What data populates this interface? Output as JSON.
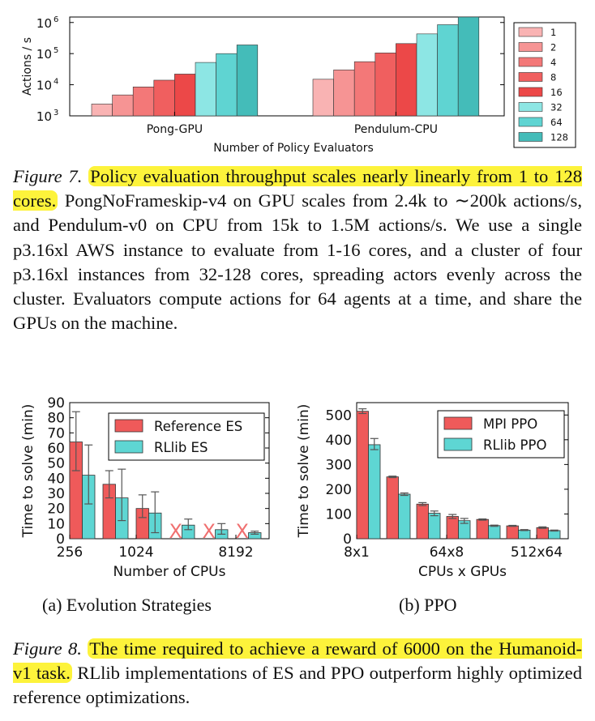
{
  "chart_data": [
    {
      "type": "bar",
      "ylabel": "Actions / s",
      "xlabel": "Number of Policy Evaluators",
      "yscale": "log",
      "ylim": [
        1000,
        1500000
      ],
      "yticks": [
        "10",
        "10",
        "10",
        "10"
      ],
      "ytick_exponents": [
        "3",
        "4",
        "5",
        "6"
      ],
      "categories": [
        "Pong-GPU",
        "Pendulum-CPU"
      ],
      "legend": [
        "1",
        "2",
        "4",
        "8",
        "16",
        "32",
        "64",
        "128"
      ],
      "legend_position": "right",
      "colors": [
        "#f9b3b3",
        "#f69494",
        "#f37878",
        "#f05f5f",
        "#ec4848",
        "#8de6e4",
        "#5fd4d2",
        "#44bcb9"
      ],
      "values": {
        "Pong-GPU": [
          2400,
          4700,
          8500,
          14000,
          22000,
          52000,
          100000,
          190000
        ],
        "Pendulum-CPU": [
          15000,
          30000,
          55000,
          105000,
          210000,
          430000,
          850000,
          1500000
        ]
      }
    },
    {
      "type": "bar",
      "subcaption": "(a) Evolution Strategies",
      "ylabel": "Time to solve (min)",
      "xlabel": "Number of CPUs",
      "ylim": [
        0,
        90
      ],
      "yticks": [
        "0",
        "10",
        "20",
        "30",
        "40",
        "50",
        "60",
        "70",
        "80",
        "90"
      ],
      "xtick_labels": [
        "256",
        "1024",
        "8192"
      ],
      "legend": [
        "Reference ES",
        "RLlib ES"
      ],
      "legend_position": "top-right",
      "colors": [
        "#ef5a5a",
        "#5ed6d3"
      ],
      "x_marker": "X",
      "series": [
        {
          "name": "Reference ES",
          "values": [
            64,
            36,
            20,
            null,
            null,
            null
          ]
        },
        {
          "name": "RLlib ES",
          "values": [
            42,
            27,
            17,
            9,
            6,
            4
          ]
        }
      ],
      "errors": [
        {
          "values": [
            [
              45,
              84
            ],
            [
              27,
              45
            ],
            [
              14,
              29
            ],
            null,
            null,
            null
          ]
        },
        {
          "values": [
            [
              23,
              62
            ],
            [
              12,
              46
            ],
            [
              4,
              31
            ],
            [
              6,
              13
            ],
            [
              3,
              10
            ],
            [
              3,
              5
            ]
          ]
        }
      ]
    },
    {
      "type": "bar",
      "subcaption": "(b) PPO",
      "ylabel": "Time to solve (min)",
      "xlabel": "CPUs x GPUs",
      "ylim": [
        0,
        550
      ],
      "yticks": [
        "0",
        "100",
        "200",
        "300",
        "400",
        "500"
      ],
      "xtick_labels": [
        "8x1",
        "64x8",
        "512x64"
      ],
      "legend": [
        "MPI PPO",
        "RLlib PPO"
      ],
      "legend_position": "top-right",
      "colors": [
        "#ef5a5a",
        "#5ed6d3"
      ],
      "series": [
        {
          "name": "MPI PPO",
          "values": [
            515,
            250,
            140,
            90,
            78,
            52,
            45
          ]
        },
        {
          "name": "RLlib PPO",
          "values": [
            380,
            180,
            103,
            73,
            53,
            35,
            33
          ]
        }
      ],
      "errors": [
        {
          "values": [
            [
              506,
              525
            ],
            [
              247,
              253
            ],
            [
              134,
              146
            ],
            [
              82,
              98
            ],
            [
              75,
              80
            ],
            [
              50,
              54
            ],
            [
              42,
              48
            ]
          ]
        },
        {
          "values": [
            [
              360,
              405
            ],
            [
              175,
              185
            ],
            [
              93,
              112
            ],
            [
              62,
              82
            ],
            [
              50,
              55
            ],
            [
              33,
              37
            ],
            [
              31,
              35
            ]
          ]
        }
      ]
    }
  ],
  "captions": {
    "fig7": {
      "label": "Figure 7.",
      "highlight": "Policy evaluation throughput scales nearly linearly from 1 to 128 cores.",
      "text": " PongNoFrameskip-v4 on GPU scales from 2.4k to ∼200k actions/s, and Pendulum-v0 on CPU from 15k to 1.5M actions/s. We use a single p3.16xl AWS instance to evaluate from 1-16 cores, and a cluster of four p3.16xl instances from 32-128 cores, spreading actors evenly across the cluster. Evaluators compute actions for 64 agents at a time, and share the GPUs on the machine."
    },
    "fig8": {
      "label": "Figure 8.",
      "highlight": "The time required to achieve a reward of 6000 on the Humanoid-v1 task.",
      "text": " RLlib implementations of ES and PPO outperform highly optimized reference optimizations."
    }
  }
}
